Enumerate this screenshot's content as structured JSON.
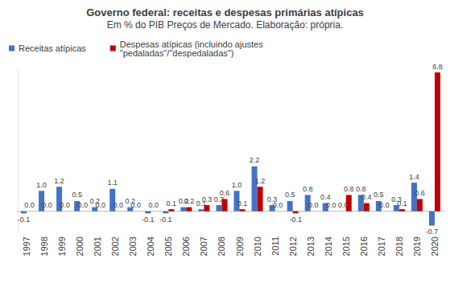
{
  "chart_data": {
    "type": "bar",
    "title": "Governo federal: receitas e despesas primárias atípicas",
    "subtitle": "Em % do PIB Preços de Mercado. Elaboração: própria.",
    "categories": [
      "1997",
      "1998",
      "1999",
      "2000",
      "2001",
      "2002",
      "2003",
      "2004",
      "2005",
      "2006",
      "2007",
      "2008",
      "2009",
      "2010",
      "2011",
      "2012",
      "2013",
      "2014",
      "2015",
      "2016",
      "2017",
      "2018",
      "2019",
      "2020"
    ],
    "series": [
      {
        "name": "Receitas atípicas",
        "color": "#4472c4",
        "values": [
          -0.1,
          1.0,
          1.2,
          0.5,
          0.2,
          1.1,
          0.2,
          -0.1,
          -0.1,
          0.2,
          0.1,
          0.3,
          1.0,
          2.2,
          0.3,
          0.5,
          0.8,
          0.4,
          0.0,
          0.8,
          0.5,
          0.3,
          1.4,
          -0.7
        ],
        "value_labels": [
          "-0.1",
          "1.0",
          "1.2",
          "0.5",
          "0.2",
          "1.1",
          "0.2",
          "-0.1",
          "-0.1",
          "0.2",
          "0.1",
          "0.3",
          "1.0",
          "2.2",
          "0.3",
          "0.5",
          "0.8",
          "0.4",
          "0.0",
          "0.8",
          "0.5",
          "0.3",
          "1.4",
          "-0.7"
        ]
      },
      {
        "name": "Despesas atípicas (incluindo ajustes \"pedaladas\"/\"despedaladas\")",
        "color": "#c00000",
        "values": [
          0.0,
          0.0,
          0.0,
          0.0,
          0.0,
          0.0,
          0.0,
          0.0,
          0.1,
          0.2,
          0.3,
          0.6,
          0.1,
          1.2,
          0.0,
          -0.1,
          0.0,
          0.0,
          0.8,
          0.4,
          0.0,
          0.1,
          0.6,
          6.8
        ],
        "value_labels": [
          "0.0",
          "0.0",
          "0.0",
          "0.0",
          "0.0",
          "0.0",
          "0.0",
          "0.0",
          "0.1",
          "0.2",
          "0.3",
          "0.6",
          "0.1",
          "1.2",
          "0.0",
          "-0.1",
          "0.0",
          "0.0",
          "0.8",
          "0.4",
          "0.0",
          "0.1",
          "0.6",
          "6.8"
        ]
      }
    ],
    "ylim": [
      -1,
      7
    ],
    "grid": false,
    "legend": "top-left",
    "data_labels": true,
    "tick_labels": "x"
  }
}
